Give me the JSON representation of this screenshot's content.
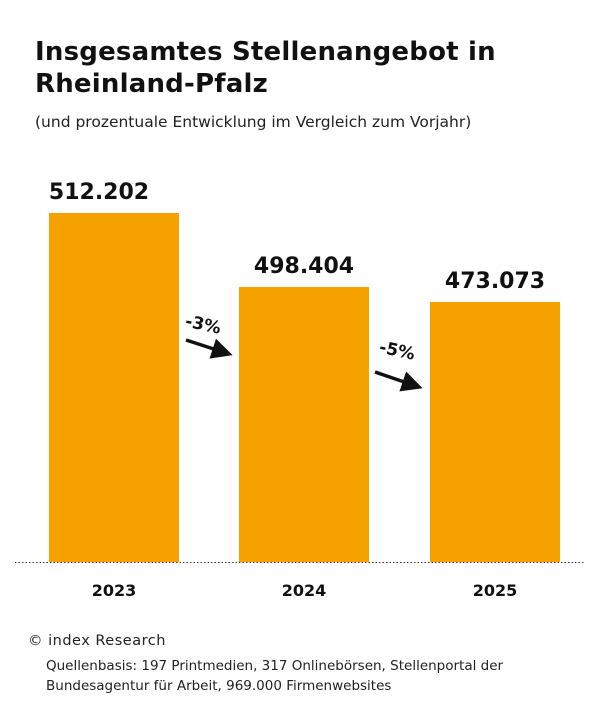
{
  "title": "Insgesamtes Stellenangebot in Rheinland-Pfalz",
  "subtitle": "(und prozentuale Entwicklung im Vergleich zum Vorjahr)",
  "credit": "© index Research",
  "source": "Quellenbasis: 197 Printmedien, 317 Onlinebörsen, Stellenportal der Bundesagentur für Arbeit, 969.000 Firmenwebsites",
  "chart_data": {
    "type": "bar",
    "title": "Insgesamtes Stellenangebot in Rheinland-Pfalz",
    "subtitle": "(und prozentuale Entwicklung im Vergleich zum Vorjahr)",
    "categories": [
      "2023",
      "2024",
      "2025"
    ],
    "values": [
      512202,
      498404,
      473073
    ],
    "value_labels": [
      "512.202",
      "498.404",
      "473.073"
    ],
    "changes": [
      "-3%",
      "-5%"
    ],
    "bar_color": "#F5A200",
    "grid": false,
    "legend": "none"
  }
}
